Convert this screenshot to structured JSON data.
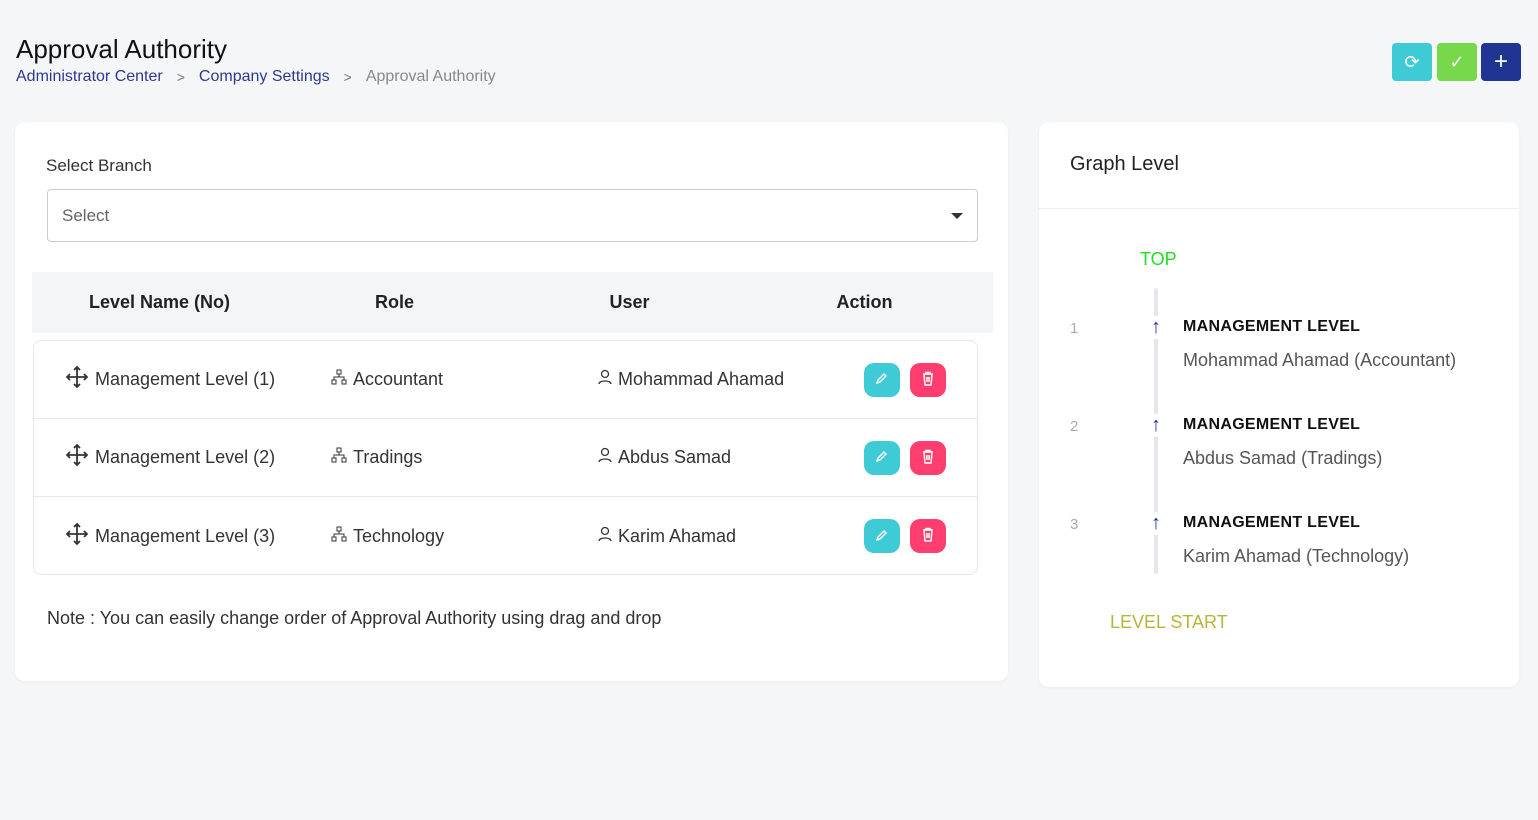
{
  "header": {
    "title": "Approval Authority",
    "breadcrumb": [
      "Administrator Center",
      "Company Settings",
      "Approval Authority"
    ]
  },
  "toolbar": {
    "refresh_icon": "⟳",
    "save_icon": "✓",
    "add_icon": "+"
  },
  "colors": {
    "refresh": "#3ecbd6",
    "save": "#76d84a",
    "add": "#1f3591",
    "edit": "#3ecbd6",
    "delete": "#ff3d6e",
    "top": "#22dd22",
    "start": "#b5b53a"
  },
  "form": {
    "label": "Select Branch",
    "placeholder": "Select"
  },
  "table": {
    "headers": [
      "Level Name (No)",
      "Role",
      "User",
      "Action"
    ],
    "rows": [
      {
        "level": "Management Level (1)",
        "role": "Accountant",
        "user": "Mohammad Ahamad"
      },
      {
        "level": "Management Level (2)",
        "role": "Tradings",
        "user": "Abdus Samad"
      },
      {
        "level": "Management Level (3)",
        "role": "Technology",
        "user": "Karim Ahamad"
      }
    ]
  },
  "note": "Note : You can easily change order of Approval Authority using drag and drop",
  "graph": {
    "title": "Graph Level",
    "top": "TOP",
    "start": "LEVEL START",
    "items": [
      {
        "num": "1",
        "title": "MANAGEMENT LEVEL",
        "sub": "Mohammad Ahamad (Accountant)"
      },
      {
        "num": "2",
        "title": "MANAGEMENT LEVEL",
        "sub": "Abdus Samad (Tradings)"
      },
      {
        "num": "3",
        "title": "MANAGEMENT LEVEL",
        "sub": "Karim Ahamad (Technology)"
      }
    ]
  }
}
